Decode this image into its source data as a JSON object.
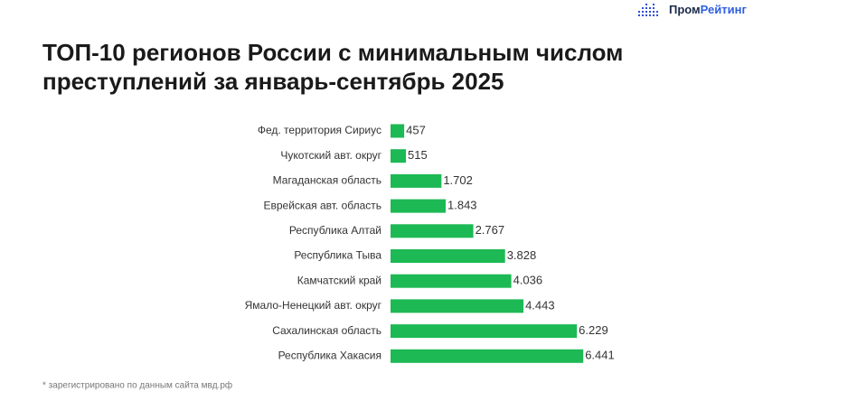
{
  "logo": {
    "prefix": "Пром",
    "suffix": "Рейтинг"
  },
  "chart_data": {
    "type": "bar",
    "orientation": "horizontal",
    "title": [
      "ТОП-10 регионов России с минимальным числом",
      "преступлений за январь-сентябрь 2025"
    ],
    "categories": [
      "Фед. территория Сириус",
      "Чукотский авт. округ",
      "Магаданская область",
      "Еврейская авт. область",
      "Республика Алтай",
      "Республика Тыва",
      "Камчатский край",
      "Ямало-Ненецкий авт. округ",
      "Сахалинская область",
      "Республика Хакасия"
    ],
    "values": [
      457,
      515,
      1702,
      1843,
      2767,
      3828,
      4036,
      4443,
      6229,
      6441
    ],
    "value_labels": [
      "457",
      "515",
      "1.702",
      "1.843",
      "2.767",
      "3.828",
      "4.036",
      "4.443",
      "6.229",
      "6.441"
    ],
    "color": "#1db954",
    "footnote": "* зарегистрировано по данным сайта мвд.рф"
  }
}
